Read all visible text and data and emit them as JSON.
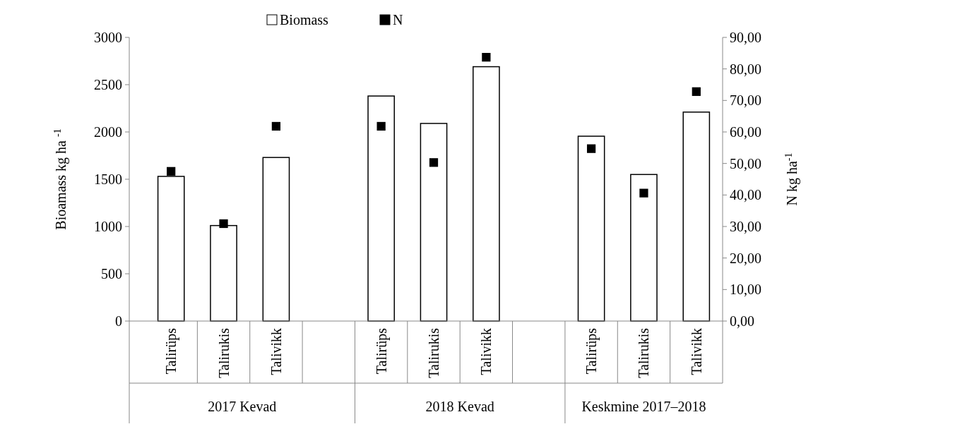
{
  "chart_data": {
    "type": "bar",
    "ylabel": "Bioamass kg ha $^{-1}$",
    "y2label": "N kg ha$^{-1}$",
    "categories": [
      "Talirüps",
      "Talirukis",
      "Talivikk",
      null,
      "Talirüps",
      "Talirukis",
      "Talivikk",
      null,
      "Talirüps",
      "Talirukis",
      "Talivikk"
    ],
    "series": [
      {
        "name": "Biomass",
        "color": "#ffffff",
        "values": [
          1530,
          1010,
          1730,
          null,
          2380,
          2090,
          2690,
          null,
          1955,
          1550,
          2210
        ]
      },
      {
        "name": "N",
        "type": "scatter",
        "axis": "y2",
        "color": "#000000",
        "marker": "square",
        "values": [
          47.5,
          30.9,
          61.8,
          null,
          61.8,
          50.3,
          83.7,
          null,
          54.7,
          40.6,
          72.8
        ]
      }
    ],
    "ylim": [
      0,
      3000
    ],
    "yticks": [
      0,
      500,
      1000,
      1500,
      2000,
      2500,
      3000
    ],
    "y2lim": [
      0,
      90
    ],
    "y2ticks": [
      {
        "value": 0,
        "label": "0,00"
      },
      {
        "value": 10,
        "label": "10,00"
      },
      {
        "value": 20,
        "label": "20,00"
      },
      {
        "value": 30,
        "label": "30,00"
      },
      {
        "value": 40,
        "label": "40,00"
      },
      {
        "value": 50,
        "label": "50,00"
      },
      {
        "value": 60,
        "label": "60,00"
      },
      {
        "value": 70,
        "label": "70,00"
      },
      {
        "value": 80,
        "label": "80,00"
      },
      {
        "value": 90,
        "label": "90,00"
      }
    ],
    "annotations": [
      "2017 Kevad",
      "2018  Kevad",
      "Keskmine 2017–2018"
    ],
    "legend": "top",
    "grid": false
  }
}
